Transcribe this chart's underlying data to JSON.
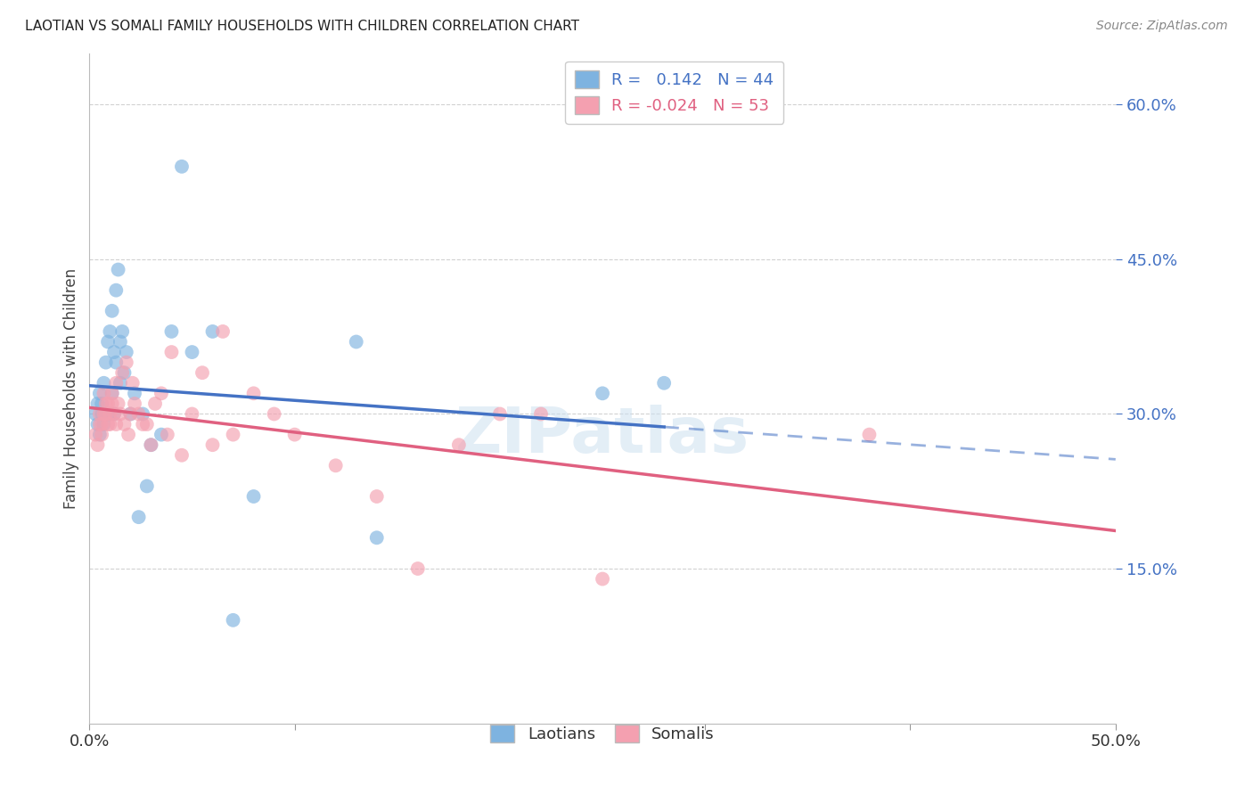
{
  "title": "LAOTIAN VS SOMALI FAMILY HOUSEHOLDS WITH CHILDREN CORRELATION CHART",
  "source": "Source: ZipAtlas.com",
  "ylabel": "Family Households with Children",
  "xlim": [
    0.0,
    0.5
  ],
  "ylim": [
    0.0,
    0.65
  ],
  "ytick_vals": [
    0.15,
    0.3,
    0.45,
    0.6
  ],
  "ytick_labels": [
    "15.0%",
    "30.0%",
    "45.0%",
    "60.0%"
  ],
  "xtick_vals": [
    0.0,
    0.1,
    0.2,
    0.3,
    0.4,
    0.5
  ],
  "xtick_labels": [
    "0.0%",
    "",
    "",
    "",
    "",
    "50.0%"
  ],
  "laotian_R": 0.142,
  "laotian_N": 44,
  "somali_R": -0.024,
  "somali_N": 53,
  "laotian_color": "#7EB3E0",
  "somali_color": "#F4A0B0",
  "laotian_line_color": "#4472C4",
  "somali_line_color": "#E06080",
  "background_color": "#ffffff",
  "grid_color": "#cccccc",
  "watermark": "ZIPatlas",
  "laotian_x": [
    0.003,
    0.004,
    0.004,
    0.005,
    0.005,
    0.006,
    0.006,
    0.007,
    0.007,
    0.008,
    0.008,
    0.009,
    0.009,
    0.01,
    0.01,
    0.011,
    0.011,
    0.012,
    0.012,
    0.013,
    0.013,
    0.014,
    0.015,
    0.015,
    0.016,
    0.017,
    0.018,
    0.02,
    0.022,
    0.024,
    0.026,
    0.028,
    0.03,
    0.035,
    0.04,
    0.045,
    0.05,
    0.06,
    0.07,
    0.08,
    0.13,
    0.14,
    0.25,
    0.28
  ],
  "laotian_y": [
    0.3,
    0.31,
    0.29,
    0.32,
    0.28,
    0.31,
    0.3,
    0.33,
    0.29,
    0.35,
    0.3,
    0.37,
    0.3,
    0.38,
    0.3,
    0.4,
    0.32,
    0.36,
    0.3,
    0.42,
    0.35,
    0.44,
    0.37,
    0.33,
    0.38,
    0.34,
    0.36,
    0.3,
    0.32,
    0.2,
    0.3,
    0.23,
    0.27,
    0.28,
    0.38,
    0.54,
    0.36,
    0.38,
    0.1,
    0.22,
    0.37,
    0.18,
    0.32,
    0.33
  ],
  "somali_x": [
    0.003,
    0.004,
    0.005,
    0.005,
    0.006,
    0.006,
    0.007,
    0.007,
    0.008,
    0.008,
    0.009,
    0.009,
    0.01,
    0.01,
    0.011,
    0.011,
    0.012,
    0.013,
    0.013,
    0.014,
    0.015,
    0.016,
    0.017,
    0.018,
    0.019,
    0.02,
    0.021,
    0.022,
    0.024,
    0.026,
    0.028,
    0.03,
    0.032,
    0.035,
    0.038,
    0.04,
    0.045,
    0.05,
    0.055,
    0.06,
    0.065,
    0.07,
    0.08,
    0.09,
    0.1,
    0.12,
    0.14,
    0.16,
    0.18,
    0.2,
    0.22,
    0.25,
    0.38
  ],
  "somali_y": [
    0.28,
    0.27,
    0.3,
    0.29,
    0.29,
    0.28,
    0.3,
    0.32,
    0.31,
    0.3,
    0.29,
    0.31,
    0.3,
    0.29,
    0.32,
    0.31,
    0.3,
    0.29,
    0.33,
    0.31,
    0.3,
    0.34,
    0.29,
    0.35,
    0.28,
    0.3,
    0.33,
    0.31,
    0.3,
    0.29,
    0.29,
    0.27,
    0.31,
    0.32,
    0.28,
    0.36,
    0.26,
    0.3,
    0.34,
    0.27,
    0.38,
    0.28,
    0.32,
    0.3,
    0.28,
    0.25,
    0.22,
    0.15,
    0.27,
    0.3,
    0.3,
    0.14,
    0.28
  ]
}
